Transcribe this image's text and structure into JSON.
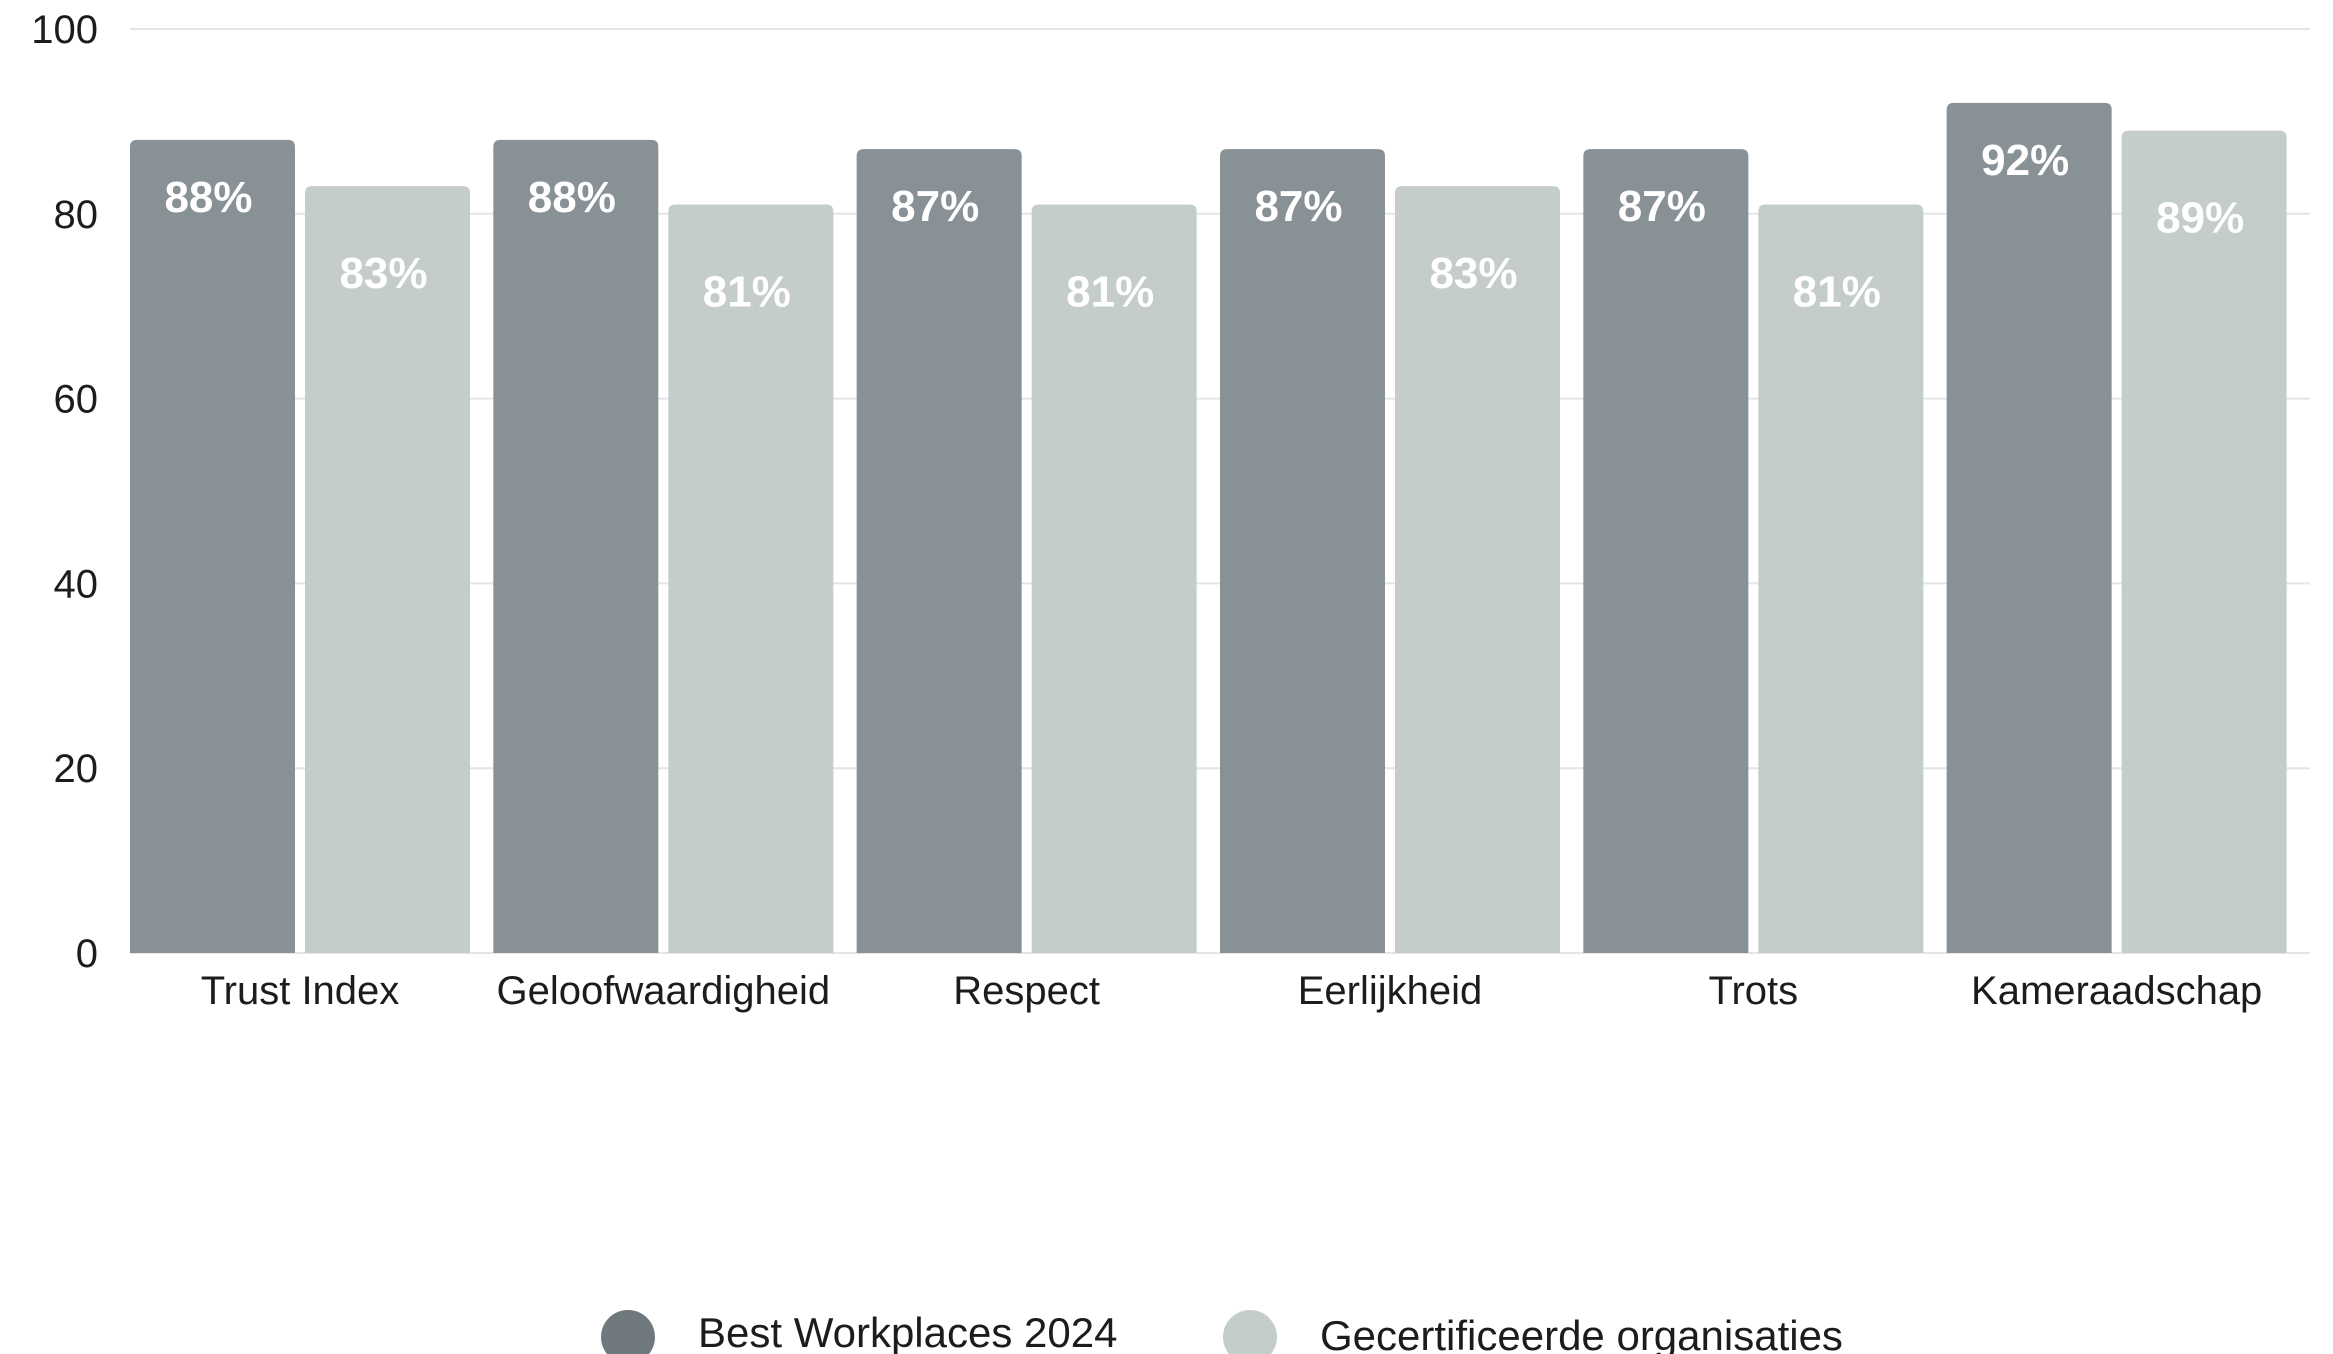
{
  "chart_data": {
    "type": "bar",
    "categories": [
      "Trust Index",
      "Geloofwaardigheid",
      "Respect",
      "Eerlijkheid",
      "Trots",
      "Kameraadschap"
    ],
    "series": [
      {
        "name": "Best Workplaces 2024",
        "values": [
          88,
          88,
          87,
          87,
          87,
          92
        ],
        "labels": [
          "88%",
          "88%",
          "87%",
          "87%",
          "87%",
          "92%"
        ],
        "color": "#889196"
      },
      {
        "name": "Gecertificeerde organisaties",
        "values": [
          83,
          81,
          81,
          83,
          81,
          89
        ],
        "labels": [
          "83%",
          "81%",
          "81%",
          "83%",
          "81%",
          "89%"
        ],
        "color": "#c5cdcc"
      }
    ],
    "yticks": [
      "0",
      "20",
      "40",
      "60",
      "80",
      "100"
    ],
    "ylim": [
      0,
      100
    ],
    "grid": true,
    "legend_position": "bottom-center",
    "title": "",
    "xlabel": "",
    "ylabel": ""
  },
  "legend": {
    "series_1_label": "Best Workplaces 2024",
    "series_2_label": "Gecertificeerde organisaties",
    "series_1_color": "#6f787d",
    "series_2_color": "#c5cdcc"
  }
}
